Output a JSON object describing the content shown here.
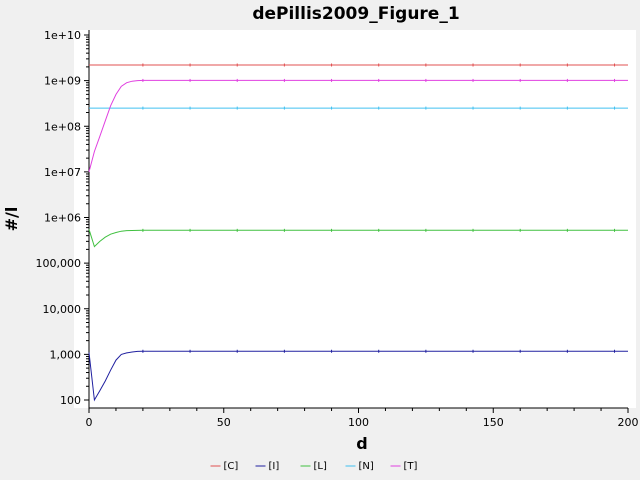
{
  "chart_data": {
    "type": "line",
    "title": "dePillis2009_Figure_1",
    "xlabel": "d",
    "ylabel": "#/l",
    "xlim": [
      0,
      200
    ],
    "ylim": [
      100,
      10000000000
    ],
    "yscale": "log",
    "grid": false,
    "legend_position": "bottom",
    "x_ticks": [
      0,
      50,
      100,
      150,
      200
    ],
    "x_tick_labels": [
      "0",
      "50",
      "100",
      "150",
      "200"
    ],
    "y_ticks": [
      100,
      1000,
      10000,
      100000,
      1000000,
      10000000,
      100000000,
      1000000000,
      10000000000
    ],
    "y_tick_labels": [
      "100",
      "1,000",
      "10,000",
      "100,000",
      "1e+06",
      "1e+07",
      "1e+08",
      "1e+09",
      "1e+10"
    ],
    "x": [
      0,
      2,
      4,
      6,
      8,
      10,
      12,
      14,
      16,
      18,
      20,
      25,
      30,
      40,
      50,
      60,
      70,
      80,
      90,
      100,
      110,
      120,
      130,
      140,
      150,
      160,
      170,
      180,
      190,
      200
    ],
    "series": [
      {
        "name": "[C]",
        "color": "#e05050",
        "values": [
          2200000000,
          2200000000,
          2200000000,
          2200000000,
          2200000000,
          2200000000,
          2200000000,
          2200000000,
          2200000000,
          2200000000,
          2200000000,
          2200000000,
          2200000000,
          2200000000,
          2200000000,
          2200000000,
          2200000000,
          2200000000,
          2200000000,
          2200000000,
          2200000000,
          2200000000,
          2200000000,
          2200000000,
          2200000000,
          2200000000,
          2200000000,
          2200000000,
          2200000000,
          2200000000
        ]
      },
      {
        "name": "[I]",
        "color": "#2020a0",
        "values": [
          1100,
          100,
          160,
          260,
          450,
          750,
          1000,
          1080,
          1130,
          1160,
          1170,
          1170,
          1170,
          1170,
          1170,
          1170,
          1170,
          1170,
          1170,
          1170,
          1170,
          1170,
          1170,
          1170,
          1170,
          1170,
          1170,
          1170,
          1170,
          1170
        ]
      },
      {
        "name": "[L]",
        "color": "#40c040",
        "values": [
          550000,
          230000,
          300000,
          370000,
          430000,
          470000,
          500000,
          515000,
          520000,
          522000,
          523000,
          523000,
          523000,
          523000,
          523000,
          523000,
          523000,
          523000,
          523000,
          523000,
          523000,
          523000,
          523000,
          523000,
          523000,
          523000,
          523000,
          523000,
          523000,
          523000
        ]
      },
      {
        "name": "[N]",
        "color": "#40c0f0",
        "values": [
          250000000,
          250000000,
          250000000,
          250000000,
          250000000,
          250000000,
          250000000,
          250000000,
          250000000,
          250000000,
          250000000,
          250000000,
          250000000,
          250000000,
          250000000,
          250000000,
          250000000,
          250000000,
          250000000,
          250000000,
          250000000,
          250000000,
          250000000,
          250000000,
          250000000,
          250000000,
          250000000,
          250000000,
          250000000,
          250000000
        ]
      },
      {
        "name": "[T]",
        "color": "#e040e0",
        "values": [
          10000000,
          28000000,
          60000000,
          130000000,
          280000000,
          500000000,
          750000000,
          900000000,
          970000000,
          1000000000,
          1010000000,
          1010000000,
          1010000000,
          1010000000,
          1010000000,
          1010000000,
          1010000000,
          1010000000,
          1010000000,
          1010000000,
          1010000000,
          1010000000,
          1010000000,
          1010000000,
          1010000000,
          1010000000,
          1010000000,
          1010000000,
          1010000000,
          1010000000
        ]
      }
    ]
  }
}
